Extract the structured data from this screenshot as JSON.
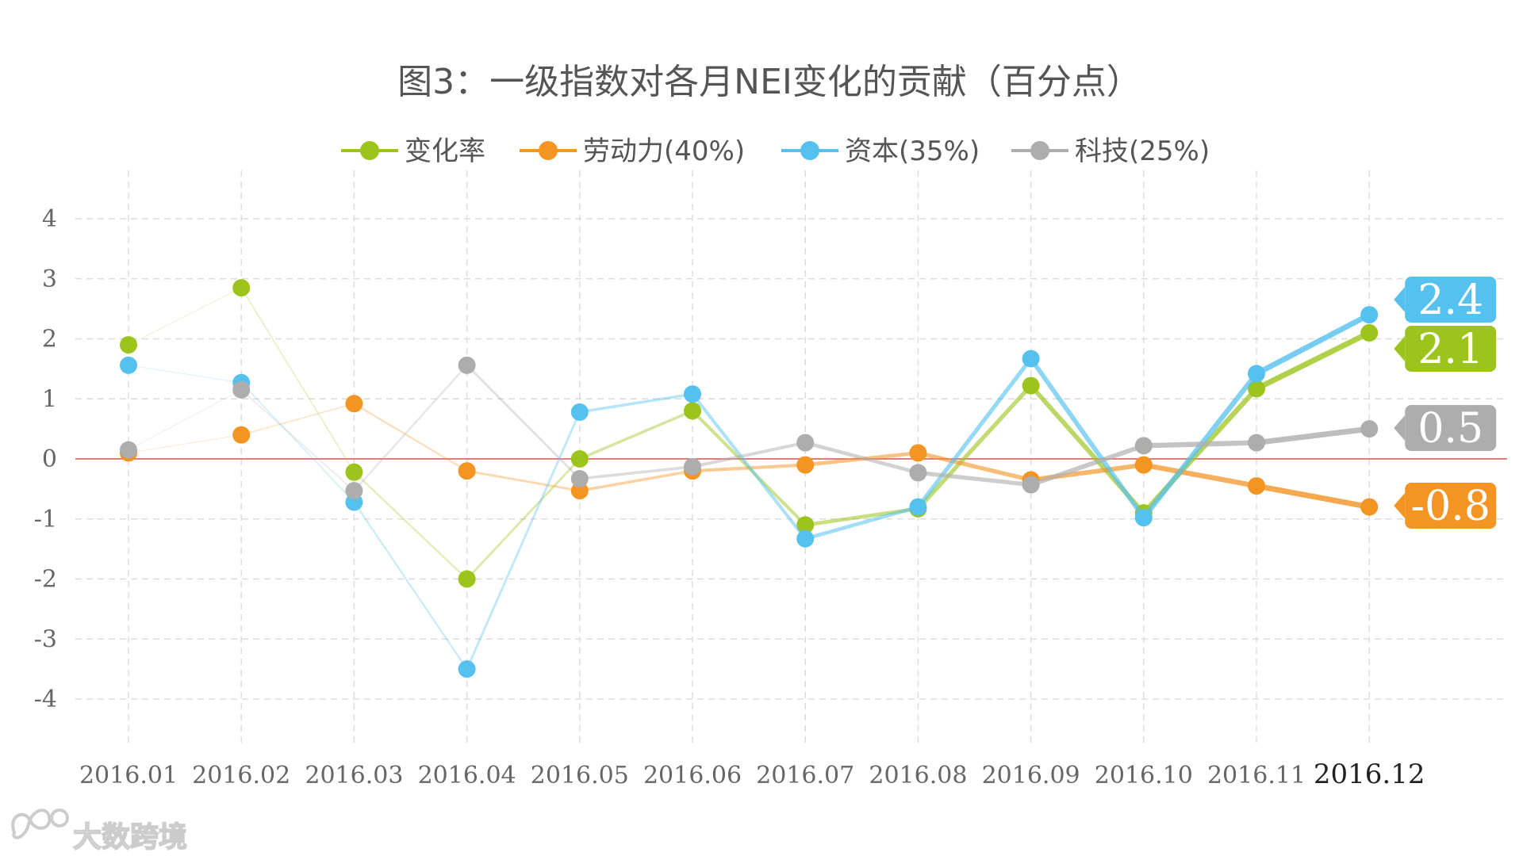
{
  "chart_data": {
    "type": "line",
    "title": "图3：一级指数对各月NEI变化的贡献（百分点）",
    "xlabel": "",
    "ylabel": "",
    "categories": [
      "2016.01",
      "2016.02",
      "2016.03",
      "2016.04",
      "2016.05",
      "2016.06",
      "2016.07",
      "2016.08",
      "2016.09",
      "2016.10",
      "2016.11",
      "2016.12"
    ],
    "ylim": [
      -4,
      4
    ],
    "yticks": [
      "4",
      "3",
      "2",
      "1",
      "0",
      "-1",
      "-2",
      "-3",
      "-4"
    ],
    "grid": true,
    "legend_position": "top",
    "series": [
      {
        "name": "变化率",
        "color": "#9DC41C",
        "values": [
          1.9,
          2.85,
          -0.22,
          -2.0,
          0.0,
          0.8,
          -1.1,
          -0.83,
          1.22,
          -0.9,
          1.17,
          2.1
        ]
      },
      {
        "name": "劳动力(40%)",
        "color": "#F39423",
        "values": [
          0.1,
          0.4,
          0.92,
          -0.2,
          -0.53,
          -0.2,
          -0.1,
          0.1,
          -0.35,
          -0.1,
          -0.45,
          -0.8
        ]
      },
      {
        "name": "资本(35%)",
        "color": "#55C1EE",
        "values": [
          1.56,
          1.27,
          -0.72,
          -3.5,
          0.78,
          1.08,
          -1.33,
          -0.8,
          1.67,
          -0.98,
          1.42,
          2.4
        ]
      },
      {
        "name": "科技(25%)",
        "color": "#ADADAD",
        "values": [
          0.15,
          1.15,
          -0.53,
          1.56,
          -0.33,
          -0.13,
          0.27,
          -0.23,
          -0.43,
          0.22,
          0.27,
          0.5
        ]
      }
    ],
    "end_labels": [
      {
        "series": "资本(35%)",
        "text": "2.4"
      },
      {
        "series": "变化率",
        "text": "2.1"
      },
      {
        "series": "科技(25%)",
        "text": "0.5"
      },
      {
        "series": "劳动力(40%)",
        "text": "-0.8"
      }
    ]
  },
  "watermark": {
    "text": "大数跨境",
    "logo_icon": "infinity-logo-icon"
  }
}
